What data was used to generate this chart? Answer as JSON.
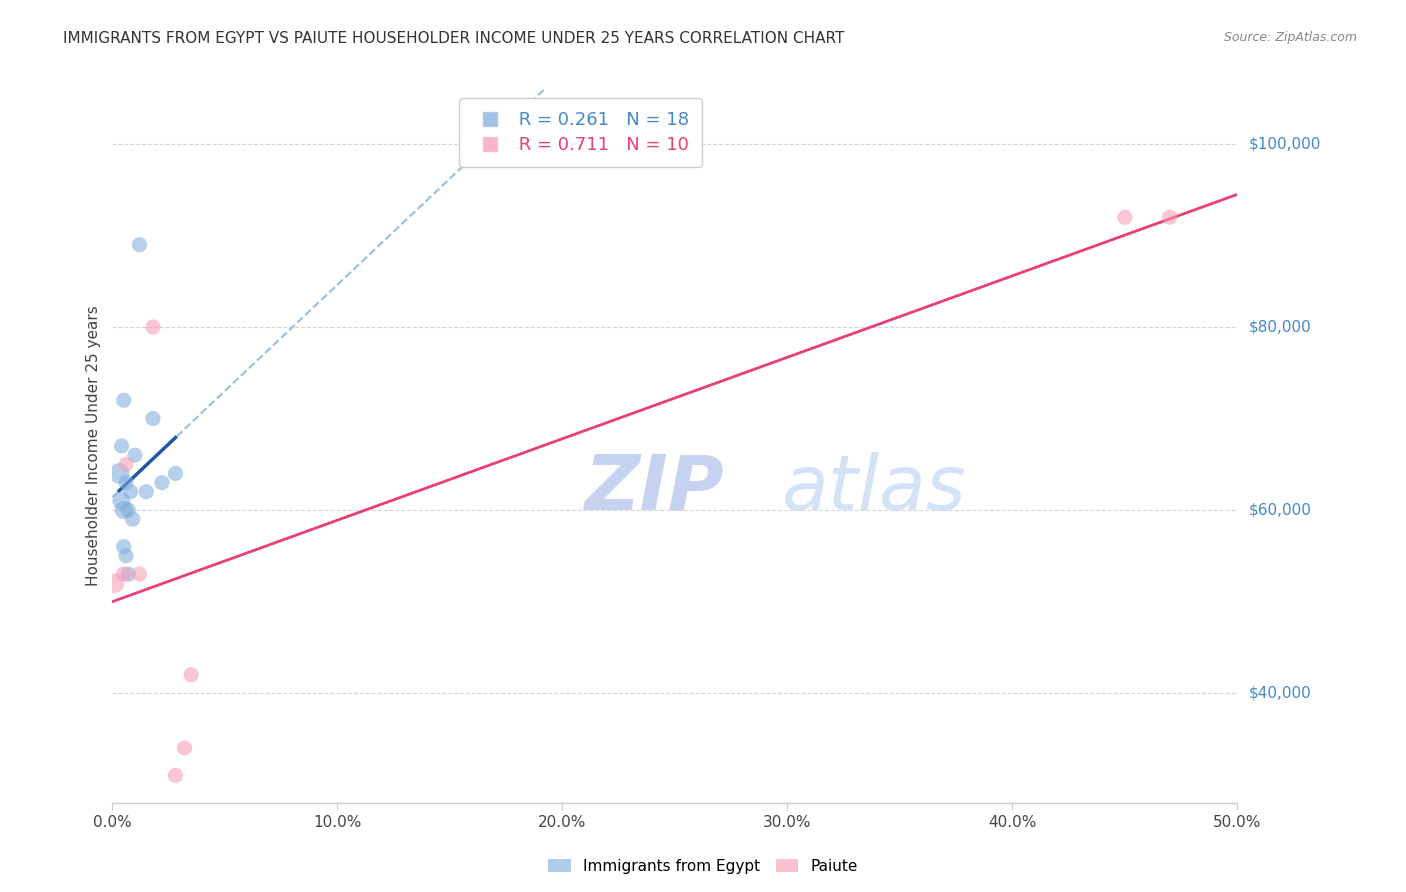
{
  "title": "IMMIGRANTS FROM EGYPT VS PAIUTE HOUSEHOLDER INCOME UNDER 25 YEARS CORRELATION CHART",
  "source": "Source: ZipAtlas.com",
  "ylabel": "Householder Income Under 25 years",
  "xlabel_ticks": [
    "0.0%",
    "10.0%",
    "20.0%",
    "30.0%",
    "40.0%",
    "50.0%"
  ],
  "xlabel_vals": [
    0.0,
    10.0,
    20.0,
    30.0,
    40.0,
    50.0
  ],
  "ylabel_ticks": [
    40000,
    60000,
    80000,
    100000
  ],
  "ylabel_labels": [
    "$40,000",
    "$60,000",
    "$80,000",
    "$100,000"
  ],
  "xlim": [
    0.0,
    50.0
  ],
  "ylim": [
    28000,
    106000
  ],
  "egypt_R": 0.261,
  "egypt_N": 18,
  "paiute_R": 0.711,
  "paiute_N": 10,
  "egypt_color": "#7aabdc",
  "paiute_color": "#f898b0",
  "egypt_x": [
    1.2,
    0.5,
    1.8,
    0.4,
    1.0,
    0.3,
    0.6,
    0.8,
    0.4,
    0.5,
    0.7,
    0.9,
    1.5,
    2.2,
    2.8,
    0.5,
    0.6,
    0.7
  ],
  "egypt_y": [
    89000,
    72000,
    70000,
    67000,
    66000,
    64000,
    63000,
    62000,
    61000,
    60000,
    60000,
    59000,
    62000,
    63000,
    64000,
    56000,
    55000,
    53000
  ],
  "egypt_sizes": [
    120,
    120,
    120,
    120,
    120,
    220,
    120,
    120,
    170,
    170,
    120,
    120,
    120,
    120,
    120,
    120,
    120,
    120
  ],
  "paiute_x": [
    0.1,
    1.8,
    0.6,
    1.2,
    0.5,
    3.5,
    45.0,
    47.0,
    3.2,
    2.8
  ],
  "paiute_y": [
    52000,
    80000,
    65000,
    53000,
    53000,
    42000,
    92000,
    92000,
    34000,
    31000
  ],
  "paiute_sizes": [
    200,
    120,
    120,
    120,
    120,
    120,
    120,
    120,
    120,
    120
  ],
  "trendline_blue_dashed_color": "#88bbdd",
  "trendline_blue_solid_color": "#2255aa",
  "trendline_pink_color": "#e84070",
  "watermark_top": "ZIP",
  "watermark_bot": "atlas",
  "watermark_color": "#ccddf0",
  "background_color": "#ffffff",
  "grid_color": "#cccccc"
}
